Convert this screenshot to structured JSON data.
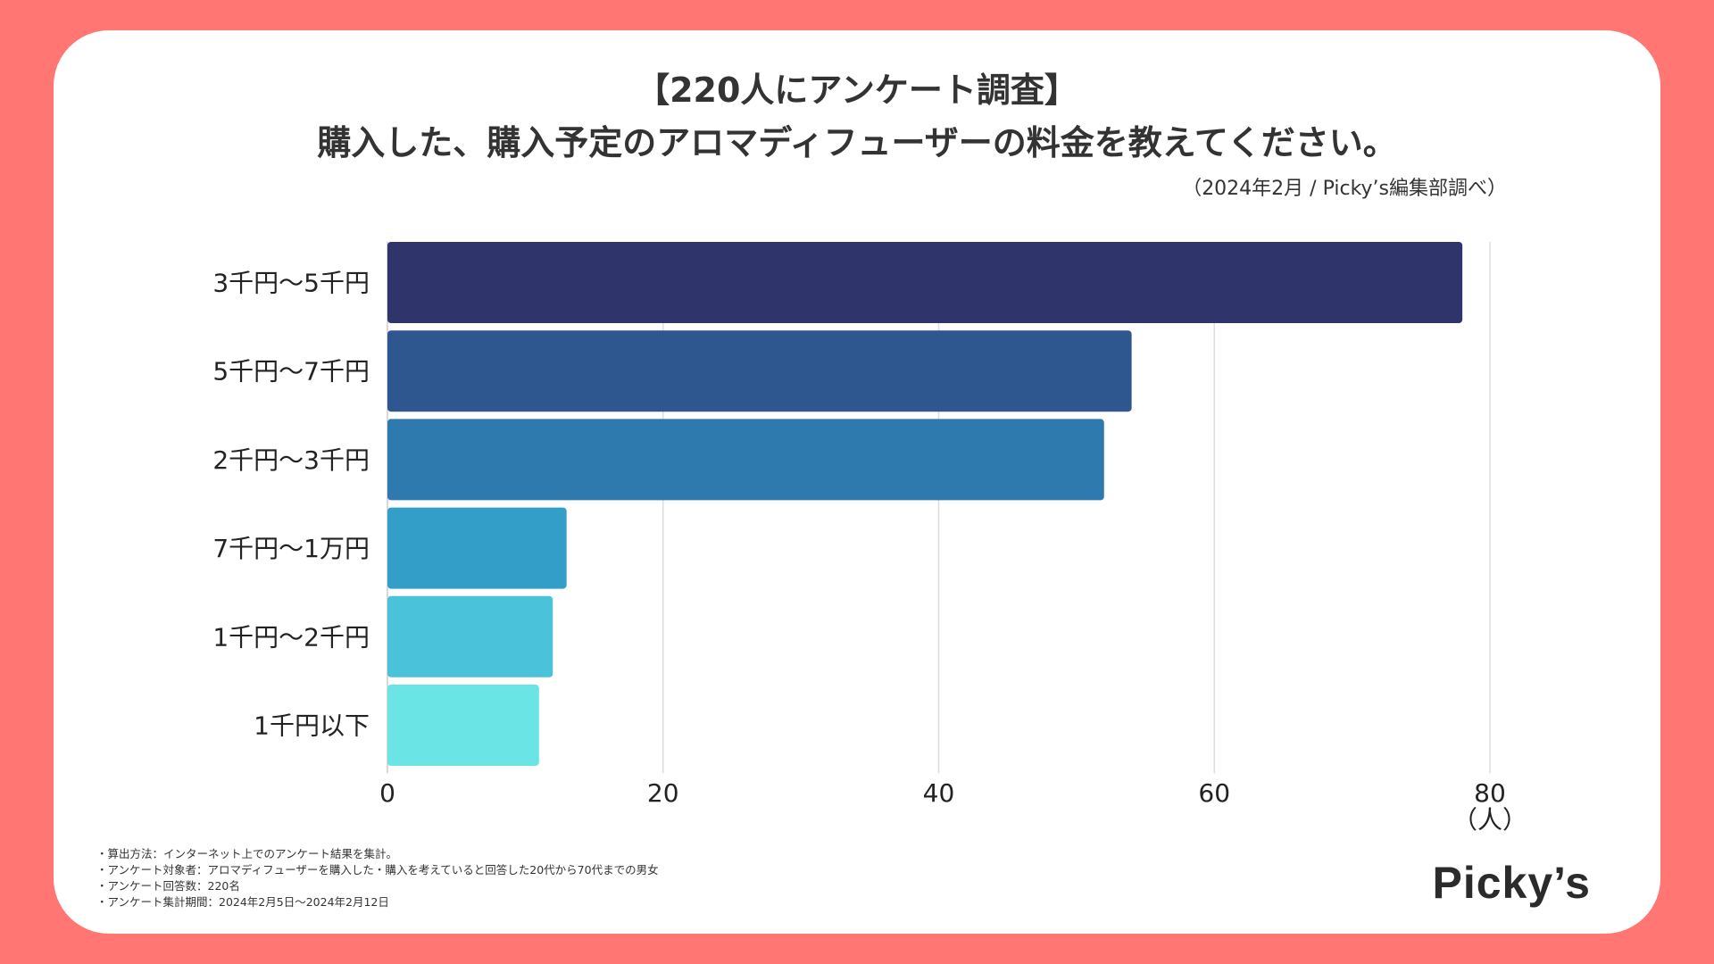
{
  "title_line1": "【220人にアンケート調査】",
  "title_line2": "購入した、購入予定のアロマディフューザーの料金を教えてください。",
  "source": "（2024年2月 / Picky’s編集部調べ）",
  "notes": [
    "・算出方法：インターネット上でのアンケート結果を集計。",
    "・アンケート対象者：アロマディフューザーを購入した・購入を考えていると回答した20代から70代までの男女",
    "・アンケート回答数：220名",
    "・アンケート集計期間：2024年2月5日〜2024年2月12日"
  ],
  "logo_text": "Picky’s",
  "colors": {
    "background": "#FF7673",
    "card": "#FFFFFF"
  },
  "chart_data": {
    "type": "bar",
    "orientation": "horizontal",
    "categories": [
      "3千円〜5千円",
      "5千円〜7千円",
      "2千円〜3千円",
      "7千円〜1万円",
      "1千円〜2千円",
      "1千円以下"
    ],
    "values": [
      78,
      54,
      52,
      13,
      12,
      11
    ],
    "bar_colors": [
      "#2F346B",
      "#2E578F",
      "#2E79AE",
      "#339FC9",
      "#4AC2D9",
      "#6BE4E6"
    ],
    "xlim": [
      0,
      80
    ],
    "xticks": [
      0,
      20,
      40,
      60,
      80
    ],
    "xunit": "（人）",
    "grid": true
  }
}
